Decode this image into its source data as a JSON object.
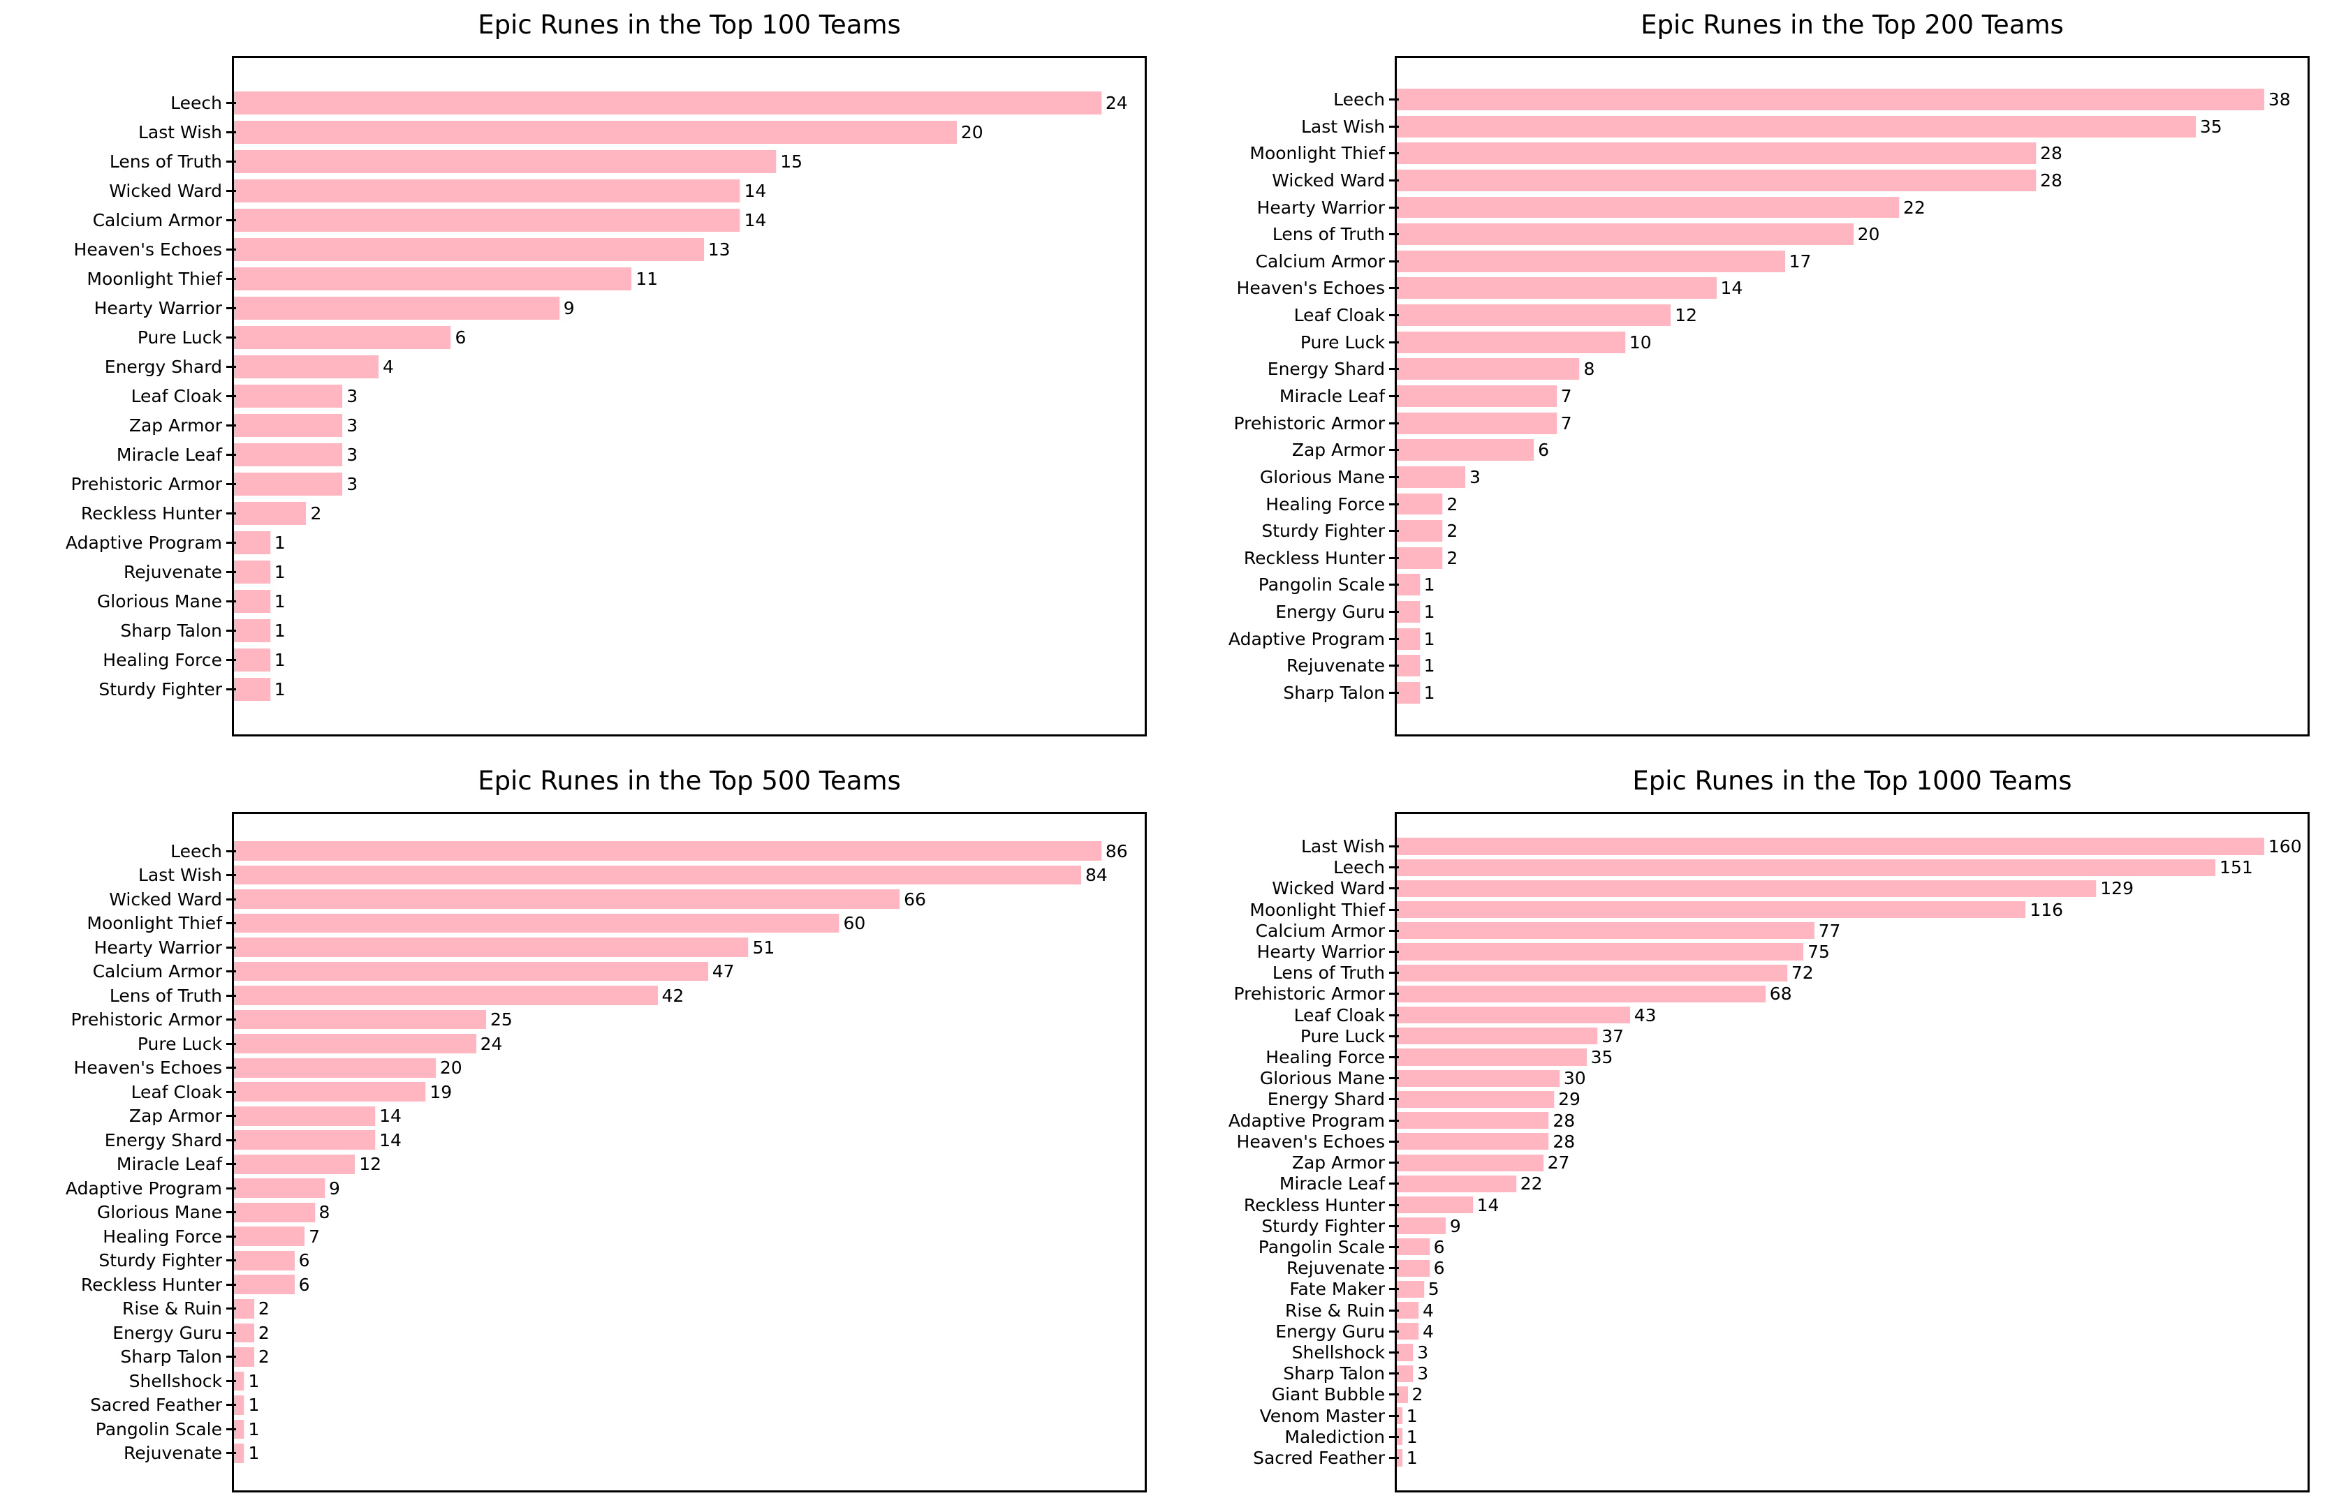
{
  "figure": {
    "background": "#ffffff",
    "text_color": "#000000",
    "spine_color": "#000000"
  },
  "chart_data": [
    {
      "type": "bar",
      "orientation": "horizontal",
      "title": "Epic Runes in the Top 100 Teams",
      "bar_color": "#ffb6c1",
      "value_labels": true,
      "grid": false,
      "x_tick_labels": false,
      "xlim": [
        0,
        25.2
      ],
      "categories": [
        "Leech",
        "Last Wish",
        "Lens of Truth",
        "Wicked Ward",
        "Calcium Armor",
        "Heaven's Echoes",
        "Moonlight Thief",
        "Hearty Warrior",
        "Pure Luck",
        "Energy Shard",
        "Leaf Cloak",
        "Zap Armor",
        "Miracle Leaf",
        "Prehistoric Armor",
        "Reckless Hunter",
        "Adaptive Program",
        "Rejuvenate",
        "Glorious Mane",
        "Sharp Talon",
        "Healing Force",
        "Sturdy Fighter"
      ],
      "values": [
        24,
        20,
        15,
        14,
        14,
        13,
        11,
        9,
        6,
        4,
        3,
        3,
        3,
        3,
        2,
        1,
        1,
        1,
        1,
        1,
        1
      ]
    },
    {
      "type": "bar",
      "orientation": "horizontal",
      "title": "Epic Runes in the Top 200 Teams",
      "bar_color": "#ffb6c1",
      "value_labels": true,
      "grid": false,
      "x_tick_labels": false,
      "xlim": [
        0,
        39.9
      ],
      "categories": [
        "Leech",
        "Last Wish",
        "Moonlight Thief",
        "Wicked Ward",
        "Hearty Warrior",
        "Lens of Truth",
        "Calcium Armor",
        "Heaven's Echoes",
        "Leaf Cloak",
        "Pure Luck",
        "Energy Shard",
        "Miracle Leaf",
        "Prehistoric Armor",
        "Zap Armor",
        "Glorious Mane",
        "Healing Force",
        "Sturdy Fighter",
        "Reckless Hunter",
        "Pangolin Scale",
        "Energy Guru",
        "Adaptive Program",
        "Rejuvenate",
        "Sharp Talon"
      ],
      "values": [
        38,
        35,
        28,
        28,
        22,
        20,
        17,
        14,
        12,
        10,
        8,
        7,
        7,
        6,
        3,
        2,
        2,
        2,
        1,
        1,
        1,
        1,
        1
      ]
    },
    {
      "type": "bar",
      "orientation": "horizontal",
      "title": "Epic Runes in the Top 500 Teams",
      "bar_color": "#ffb6c1",
      "value_labels": true,
      "grid": false,
      "x_tick_labels": false,
      "xlim": [
        0,
        90.3
      ],
      "categories": [
        "Leech",
        "Last Wish",
        "Wicked Ward",
        "Moonlight Thief",
        "Hearty Warrior",
        "Calcium Armor",
        "Lens of Truth",
        "Prehistoric Armor",
        "Pure Luck",
        "Heaven's Echoes",
        "Leaf Cloak",
        "Zap Armor",
        "Energy Shard",
        "Miracle Leaf",
        "Adaptive Program",
        "Glorious Mane",
        "Healing Force",
        "Sturdy Fighter",
        "Reckless Hunter",
        "Rise & Ruin",
        "Energy Guru",
        "Sharp Talon",
        "Shellshock",
        "Sacred Feather",
        "Pangolin Scale",
        "Rejuvenate"
      ],
      "values": [
        86,
        84,
        66,
        60,
        51,
        47,
        42,
        25,
        24,
        20,
        19,
        14,
        14,
        12,
        9,
        8,
        7,
        6,
        6,
        2,
        2,
        2,
        1,
        1,
        1,
        1
      ]
    },
    {
      "type": "bar",
      "orientation": "horizontal",
      "title": "Epic Runes in the Top 1000 Teams",
      "bar_color": "#ffb6c1",
      "value_labels": true,
      "grid": false,
      "x_tick_labels": false,
      "xlim": [
        0,
        168
      ],
      "categories": [
        "Last Wish",
        "Leech",
        "Wicked Ward",
        "Moonlight Thief",
        "Calcium Armor",
        "Hearty Warrior",
        "Lens of Truth",
        "Prehistoric Armor",
        "Leaf Cloak",
        "Pure Luck",
        "Healing Force",
        "Glorious Mane",
        "Energy Shard",
        "Adaptive Program",
        "Heaven's Echoes",
        "Zap Armor",
        "Miracle Leaf",
        "Reckless Hunter",
        "Sturdy Fighter",
        "Pangolin Scale",
        "Rejuvenate",
        "Fate Maker",
        "Rise & Ruin",
        "Energy Guru",
        "Shellshock",
        "Sharp Talon",
        "Giant Bubble",
        "Venom Master",
        "Malediction",
        "Sacred Feather"
      ],
      "values": [
        160,
        151,
        129,
        116,
        77,
        75,
        72,
        68,
        43,
        37,
        35,
        30,
        29,
        28,
        28,
        27,
        22,
        14,
        9,
        6,
        6,
        5,
        4,
        4,
        3,
        3,
        2,
        1,
        1,
        1
      ]
    }
  ]
}
